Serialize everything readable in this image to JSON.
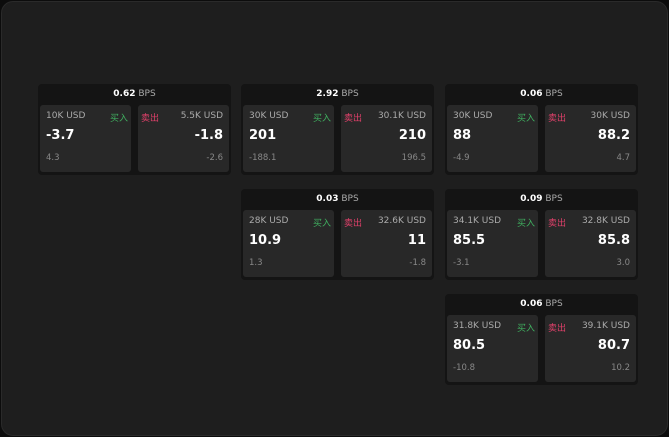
{
  "colors": {
    "buy": "#3fae5f",
    "sell": "#e0406a"
  },
  "labels": {
    "buy": "买入",
    "sell": "卖出",
    "unit": "BPS"
  },
  "quotes": [
    {
      "spread": "0.62",
      "bid_qty": "10K USD",
      "bid": "-3.7",
      "bid_chg": "4.3",
      "ask_qty": "5.5K USD",
      "ask": "-1.8",
      "ask_chg": "-2.6"
    },
    {
      "spread": "2.92",
      "bid_qty": "30K USD",
      "bid": "201",
      "bid_chg": "-188.1",
      "ask_qty": "30.1K USD",
      "ask": "210",
      "ask_chg": "196.5"
    },
    {
      "spread": "0.06",
      "bid_qty": "30K USD",
      "bid": "88",
      "bid_chg": "-4.9",
      "ask_qty": "30K USD",
      "ask": "88.2",
      "ask_chg": "4.7"
    },
    {
      "spread": "0.03",
      "bid_qty": "28K USD",
      "bid": "10.9",
      "bid_chg": "1.3",
      "ask_qty": "32.6K USD",
      "ask": "11",
      "ask_chg": "-1.8"
    },
    {
      "spread": "0.09",
      "bid_qty": "34.1K USD",
      "bid": "85.5",
      "bid_chg": "-3.1",
      "ask_qty": "32.8K USD",
      "ask": "85.8",
      "ask_chg": "3.0"
    },
    {
      "spread": "0.06",
      "bid_qty": "31.8K USD",
      "bid": "80.5",
      "bid_chg": "-10.8",
      "ask_qty": "39.1K USD",
      "ask": "80.7",
      "ask_chg": "10.2"
    }
  ]
}
